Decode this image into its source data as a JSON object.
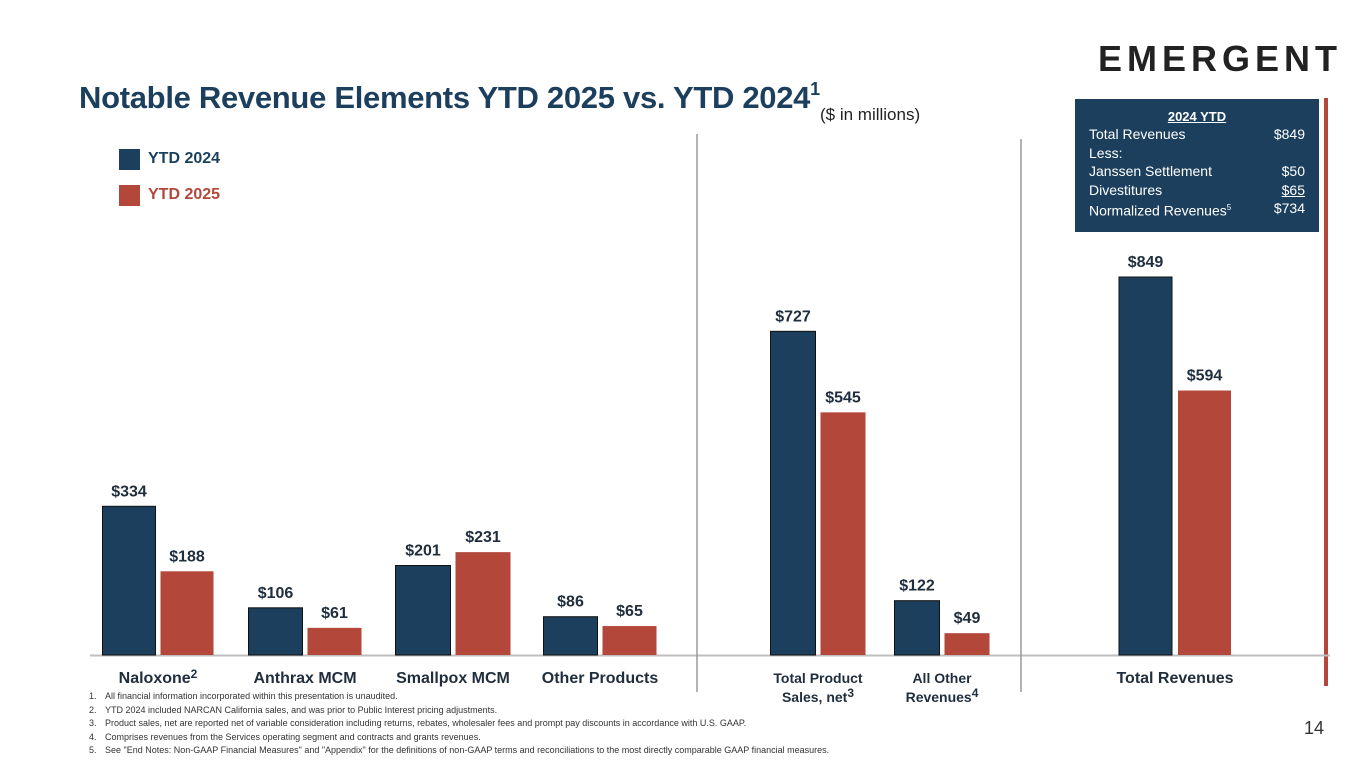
{
  "logo_text": "EMERGENT",
  "title": "Notable Revenue Elements YTD 2025 vs. YTD 2024",
  "title_superscript": "1",
  "units_note": "($ in millions)",
  "colors": {
    "ytd2024": "#1b3f5c",
    "ytd2025": "#b2473a",
    "accent": "#b2473a"
  },
  "legend": [
    {
      "label": "YTD 2024",
      "color": "#1b3f5c"
    },
    {
      "label": "YTD 2025",
      "color": "#b2473a"
    }
  ],
  "ytd_box": {
    "title": "2024 YTD",
    "rows": [
      {
        "label": "Total Revenues",
        "value": "$849"
      },
      {
        "label": "Less:",
        "value": ""
      },
      {
        "label": "Janssen Settlement",
        "value": "$50"
      },
      {
        "label": "Divestitures",
        "value": "$65"
      },
      {
        "label": "Normalized Revenues",
        "label_sup": "5",
        "value": "$734"
      }
    ]
  },
  "chart_data": {
    "type": "bar",
    "title": "Notable Revenue Elements YTD 2025 vs. YTD 2024",
    "ylabel": "$ in millions",
    "ylim": [
      0,
      900
    ],
    "series": [
      {
        "name": "YTD 2024",
        "values": [
          334,
          106,
          201,
          86,
          727,
          122,
          849
        ]
      },
      {
        "name": "YTD 2025",
        "values": [
          188,
          61,
          231,
          65,
          545,
          49,
          594
        ]
      }
    ],
    "categories": [
      {
        "lines": [
          "Naloxone"
        ],
        "sup": "2"
      },
      {
        "lines": [
          "Anthrax MCM"
        ],
        "sup": ""
      },
      {
        "lines": [
          "Smallpox MCM"
        ],
        "sup": ""
      },
      {
        "lines": [
          "Other Products"
        ],
        "sup": ""
      },
      {
        "lines": [
          "Total Product",
          "Sales, net"
        ],
        "sup": "3"
      },
      {
        "lines": [
          "All Other",
          "Revenues"
        ],
        "sup": "4"
      },
      {
        "lines": [
          "Total Revenues"
        ],
        "sup": ""
      }
    ],
    "value_labels": {
      "YTD 2024": [
        "$334",
        "$106",
        "$201",
        "$86",
        "$727",
        "$122",
        "$849"
      ],
      "YTD 2025": [
        "$188",
        "$61",
        "$231",
        "$65",
        "$545",
        "$49",
        "$594"
      ]
    }
  },
  "footnotes": [
    {
      "num": "1.",
      "text": "All financial information incorporated within this presentation is unaudited."
    },
    {
      "num": "2.",
      "text": "YTD 2024 included NARCAN California sales, and was prior to Public Interest pricing adjustments."
    },
    {
      "num": "3.",
      "text": "Product sales, net are reported net of variable consideration including returns, rebates, wholesaler fees and prompt pay discounts in accordance with U.S. GAAP."
    },
    {
      "num": "4.",
      "text": "Comprises revenues from the Services operating segment and contracts and grants revenues."
    },
    {
      "num": "5.",
      "text": "See \"End Notes: Non-GAAP Financial Measures\" and \"Appendix\" for the definitions of non-GAAP terms and reconciliations to the most directly comparable GAAP financial measures."
    }
  ],
  "page_number": "14"
}
